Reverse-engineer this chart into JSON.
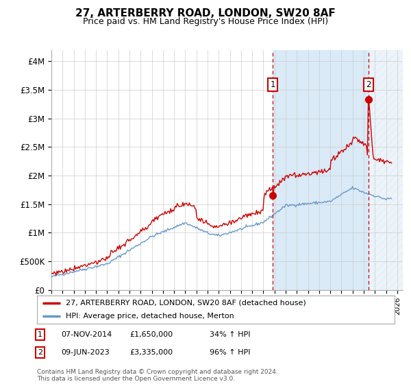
{
  "title": "27, ARTERBERRY ROAD, LONDON, SW20 8AF",
  "subtitle": "Price paid vs. HM Land Registry's House Price Index (HPI)",
  "ylabel_ticks": [
    "£0",
    "£500K",
    "£1M",
    "£1.5M",
    "£2M",
    "£2.5M",
    "£3M",
    "£3.5M",
    "£4M"
  ],
  "ylabel_values": [
    0,
    500000,
    1000000,
    1500000,
    2000000,
    2500000,
    3000000,
    3500000,
    4000000
  ],
  "ylim": [
    0,
    4200000
  ],
  "xlim_start": 1995,
  "xlim_end": 2026.5,
  "red_line_color": "#cc0000",
  "blue_line_color": "#6699cc",
  "vline_color": "#cc0000",
  "shade_color": "#ddeeff",
  "marker1_year": 2014.85,
  "marker2_year": 2023.45,
  "marker1_value": 1650000,
  "marker2_value": 3335000,
  "legend_line1": "27, ARTERBERRY ROAD, LONDON, SW20 8AF (detached house)",
  "legend_line2": "HPI: Average price, detached house, Merton",
  "annotation1_date": "07-NOV-2014",
  "annotation1_price": "£1,650,000",
  "annotation1_hpi": "34% ↑ HPI",
  "annotation2_date": "09-JUN-2023",
  "annotation2_price": "£3,335,000",
  "annotation2_hpi": "96% ↑ HPI",
  "footnote": "Contains HM Land Registry data © Crown copyright and database right 2024.\nThis data is licensed under the Open Government Licence v3.0.",
  "background_color": "#ffffff",
  "grid_color": "#cccccc"
}
